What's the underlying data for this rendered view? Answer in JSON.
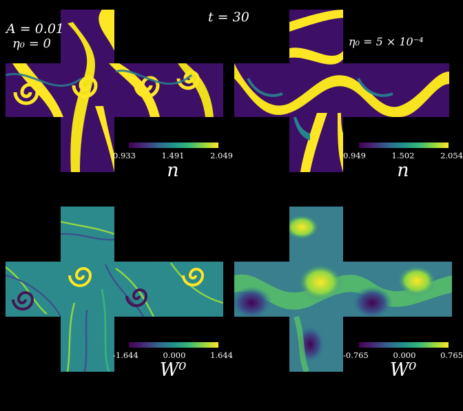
{
  "colors": {
    "background": "#000000",
    "viridis_dark": "#440154",
    "viridis_purple": "#462a7a",
    "viridis_blue": "#31688e",
    "viridis_teal": "#21918c",
    "viridis_green": "#35b779",
    "viridis_light": "#90d743",
    "viridis_yellow": "#fde725"
  },
  "captions": {
    "time": "t = 30",
    "amplitude": "A = 0.01",
    "eta_zero": "η₀ = 0",
    "eta_nonzero": "η₀ = 5 × 10⁻⁴"
  },
  "panels": [
    {
      "field": "n",
      "label": "n",
      "colorbar": {
        "min": "0.933",
        "mid": "1.491",
        "max": "2.049"
      }
    },
    {
      "field": "n",
      "label": "n",
      "colorbar": {
        "min": "0.949",
        "mid": "1.502",
        "max": "2.054"
      }
    },
    {
      "field": "W0",
      "label": "W⁰",
      "colorbar": {
        "min": "-1.644",
        "mid": "0.000",
        "max": "1.644"
      }
    },
    {
      "field": "W0",
      "label": "W⁰",
      "colorbar": {
        "min": "-0.765",
        "mid": "0.000",
        "max": "0.765"
      }
    }
  ]
}
